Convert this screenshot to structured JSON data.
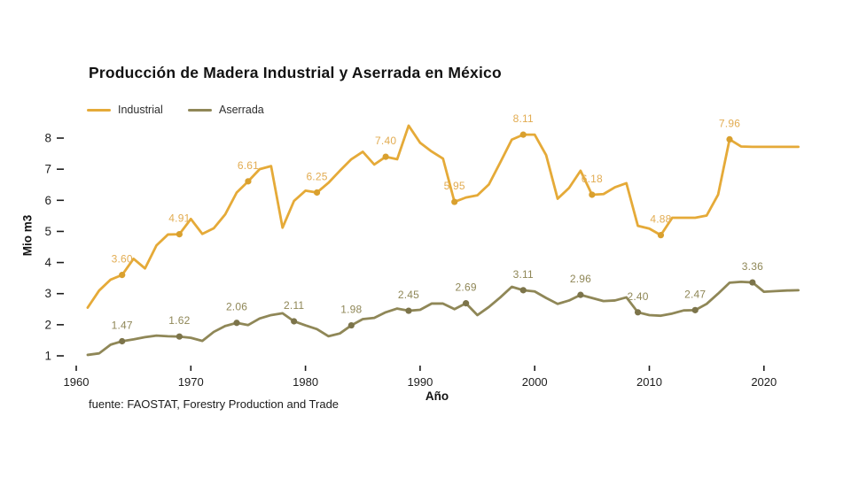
{
  "header": {
    "title": "Producción de Madera Industrial y Aserrada en México"
  },
  "legend": {
    "items": [
      {
        "label": "Industrial",
        "color": "#E5AA38"
      },
      {
        "label": "Aserrada",
        "color": "#8F8757"
      }
    ]
  },
  "source": "fuente: FAOSTAT, Forestry Production and Trade",
  "colors": {
    "background": "#FFFFFF",
    "industrial_line": "#E5AA38",
    "industrial_label": "#E2AC52",
    "industrial_marker": "#D9A02E",
    "aserrada_line": "#8F8757",
    "aserrada_label": "#8F8757",
    "aserrada_marker": "#7C744A",
    "axis_text": "#1D1D1D",
    "title_text": "#121212"
  },
  "chart_data": {
    "type": "line",
    "title": "Producción de Madera Industrial y Aserrada en México",
    "xlabel": "Año",
    "ylabel": "Mio m3",
    "grid": false,
    "legend_position": "top-left",
    "x_ticks": [
      1960,
      1970,
      1980,
      1990,
      2000,
      2010,
      2020
    ],
    "y_ticks": [
      1,
      2,
      3,
      4,
      5,
      6,
      7,
      8
    ],
    "xlim": [
      1960,
      2023
    ],
    "ylim": [
      1,
      8.6
    ],
    "x": [
      1961,
      1962,
      1963,
      1964,
      1965,
      1966,
      1967,
      1968,
      1969,
      1970,
      1971,
      1972,
      1973,
      1974,
      1975,
      1976,
      1977,
      1978,
      1979,
      1980,
      1981,
      1982,
      1983,
      1984,
      1985,
      1986,
      1987,
      1988,
      1989,
      1990,
      1991,
      1992,
      1993,
      1994,
      1995,
      1996,
      1997,
      1998,
      1999,
      2000,
      2001,
      2002,
      2003,
      2004,
      2005,
      2006,
      2007,
      2008,
      2009,
      2010,
      2011,
      2012,
      2013,
      2014,
      2015,
      2016,
      2017,
      2018,
      2019,
      2020,
      2021,
      2022,
      2023
    ],
    "series": [
      {
        "name": "Industrial",
        "color": "#E5AA38",
        "label_color": "#E2AC52",
        "marker_color": "#D9A02E",
        "values": [
          2.55,
          3.1,
          3.45,
          3.6,
          4.12,
          3.81,
          4.55,
          4.9,
          4.91,
          5.4,
          4.92,
          5.1,
          5.55,
          6.25,
          6.61,
          7.0,
          7.1,
          5.12,
          5.98,
          6.31,
          6.25,
          6.56,
          6.95,
          7.32,
          7.56,
          7.15,
          7.4,
          7.32,
          8.4,
          7.85,
          7.57,
          7.34,
          5.95,
          6.09,
          6.16,
          6.51,
          7.22,
          7.95,
          8.11,
          8.11,
          7.45,
          6.05,
          6.4,
          6.95,
          6.18,
          6.2,
          6.42,
          6.55,
          5.18,
          5.09,
          4.88,
          5.44,
          5.44,
          5.44,
          5.51,
          6.18,
          7.96,
          7.73,
          7.72,
          7.72,
          7.72,
          7.72,
          7.72
        ],
        "labeled_points": [
          {
            "year": 1964,
            "value": 3.6,
            "label": "3.60"
          },
          {
            "year": 1969,
            "value": 4.91,
            "label": "4.91"
          },
          {
            "year": 1975,
            "value": 6.61,
            "label": "6.61"
          },
          {
            "year": 1981,
            "value": 6.25,
            "label": "6.25"
          },
          {
            "year": 1987,
            "value": 7.4,
            "label": "7.40"
          },
          {
            "year": 1993,
            "value": 5.95,
            "label": "5.95"
          },
          {
            "year": 1999,
            "value": 8.11,
            "label": "8.11"
          },
          {
            "year": 2005,
            "value": 6.18,
            "label": "6.18"
          },
          {
            "year": 2011,
            "value": 4.88,
            "label": "4.88"
          },
          {
            "year": 2017,
            "value": 7.96,
            "label": "7.96"
          }
        ]
      },
      {
        "name": "Aserrada",
        "color": "#8F8757",
        "label_color": "#8F8757",
        "marker_color": "#7C744A",
        "values": [
          1.03,
          1.08,
          1.36,
          1.47,
          1.53,
          1.6,
          1.65,
          1.63,
          1.62,
          1.58,
          1.48,
          1.77,
          1.96,
          2.06,
          1.99,
          2.2,
          2.31,
          2.37,
          2.11,
          1.98,
          1.86,
          1.63,
          1.72,
          1.98,
          2.18,
          2.22,
          2.4,
          2.52,
          2.45,
          2.48,
          2.68,
          2.68,
          2.5,
          2.69,
          2.31,
          2.57,
          2.88,
          3.22,
          3.11,
          3.07,
          2.86,
          2.67,
          2.78,
          2.96,
          2.86,
          2.76,
          2.78,
          2.88,
          2.4,
          2.31,
          2.29,
          2.36,
          2.46,
          2.47,
          2.67,
          3.0,
          3.35,
          3.38,
          3.36,
          3.06,
          3.08,
          3.1,
          3.11
        ],
        "labeled_points": [
          {
            "year": 1964,
            "value": 1.47,
            "label": "1.47"
          },
          {
            "year": 1969,
            "value": 1.62,
            "label": "1.62"
          },
          {
            "year": 1974,
            "value": 2.06,
            "label": "2.06"
          },
          {
            "year": 1979,
            "value": 2.11,
            "label": "2.11"
          },
          {
            "year": 1984,
            "value": 1.98,
            "label": "1.98"
          },
          {
            "year": 1989,
            "value": 2.45,
            "label": "2.45"
          },
          {
            "year": 1994,
            "value": 2.69,
            "label": "2.69"
          },
          {
            "year": 1999,
            "value": 3.11,
            "label": "3.11"
          },
          {
            "year": 2004,
            "value": 2.96,
            "label": "2.96"
          },
          {
            "year": 2009,
            "value": 2.4,
            "label": "2.40"
          },
          {
            "year": 2014,
            "value": 2.47,
            "label": "2.47"
          },
          {
            "year": 2019,
            "value": 3.36,
            "label": "3.36"
          }
        ]
      }
    ]
  }
}
